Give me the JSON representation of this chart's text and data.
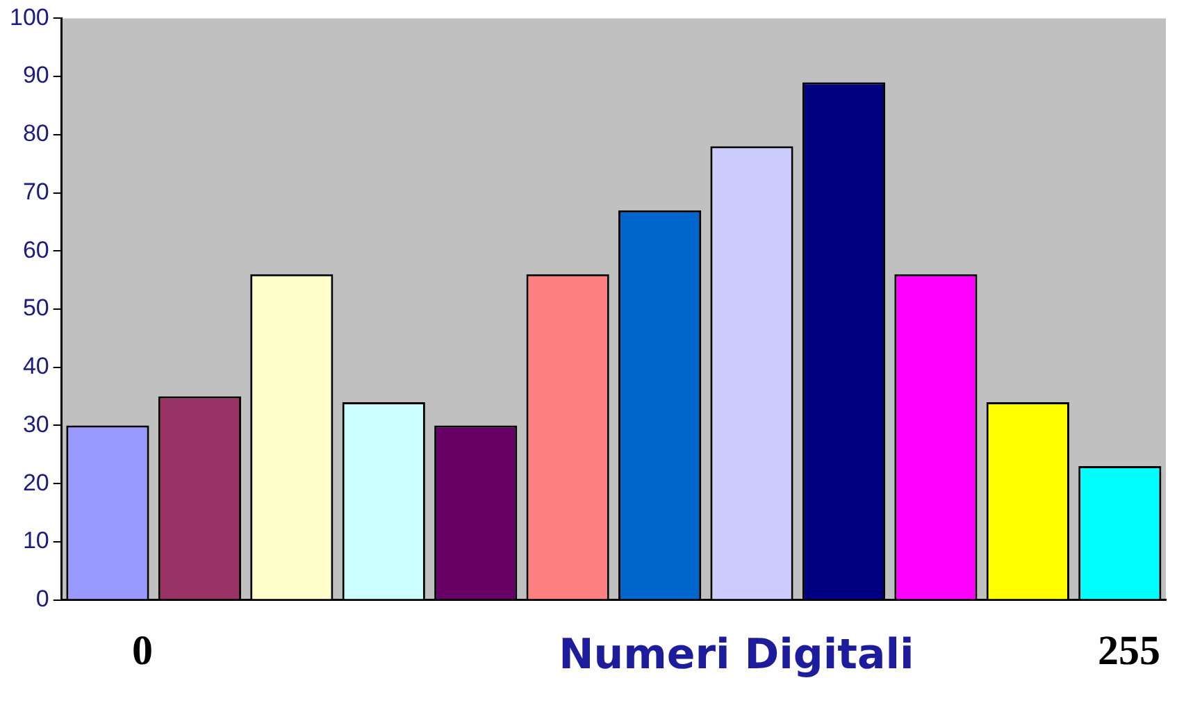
{
  "chart_data": {
    "type": "bar",
    "xlabel": "Numeri Digitali",
    "annotations": [
      "0",
      "255"
    ],
    "categories": [
      null,
      null,
      null,
      null,
      null,
      null,
      null,
      null,
      null,
      null,
      null,
      null
    ],
    "values": [
      30,
      35,
      56,
      34,
      30,
      56,
      67,
      78,
      89,
      56,
      34,
      23
    ],
    "colors": [
      "#9999ff",
      "#993366",
      "#ffffcc",
      "#ccffff",
      "#660066",
      "#ff8080",
      "#0066cc",
      "#ccccff",
      "#000080",
      "#ff00ff",
      "#ffff00",
      "#00ffff"
    ],
    "ylim": [
      0,
      100
    ],
    "yticks": [
      0,
      10,
      20,
      30,
      40,
      50,
      60,
      70,
      80,
      90,
      100
    ],
    "grid": false,
    "legend": false
  }
}
